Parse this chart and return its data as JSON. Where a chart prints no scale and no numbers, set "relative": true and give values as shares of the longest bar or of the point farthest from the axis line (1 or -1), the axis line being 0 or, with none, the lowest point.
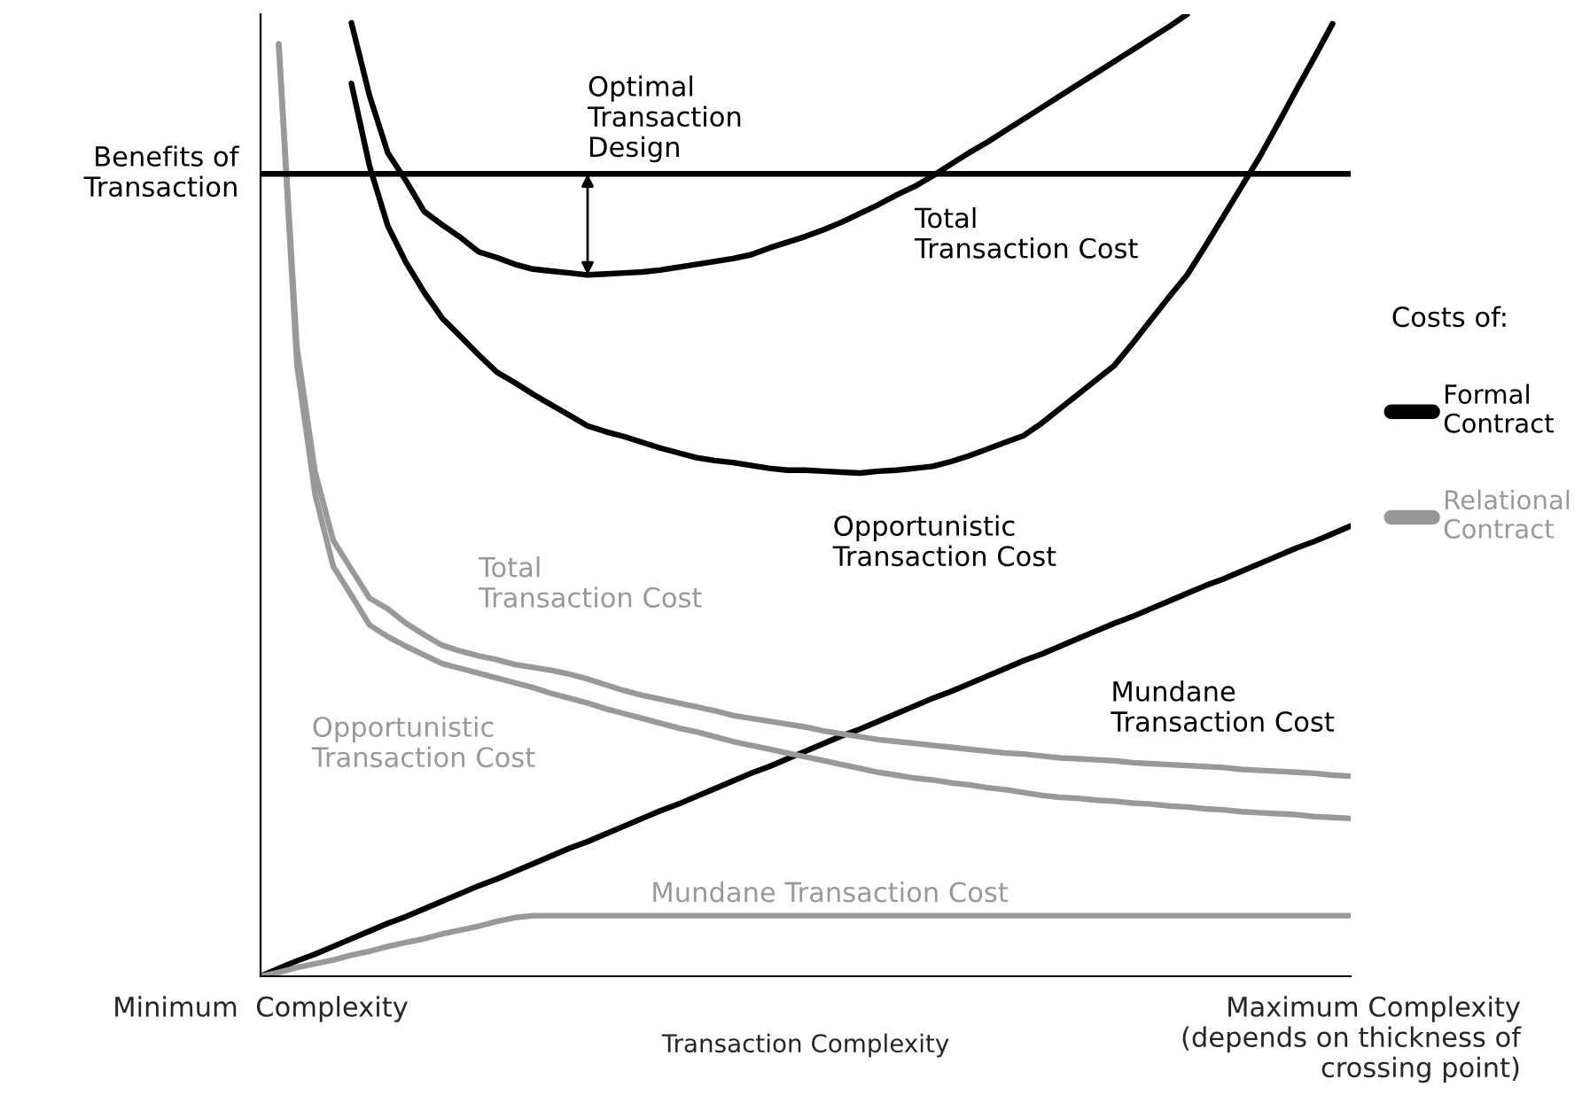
{
  "chart_data": {
    "type": "line",
    "relative": true,
    "xlabel": "Transaction Complexity",
    "legend_title": "Costs of:",
    "legend": "right",
    "grid": false,
    "marker": "none",
    "line_style": "solid",
    "tick_labels": "x",
    "categories": [
      "Minimum  Complexity",
      null,
      null,
      null,
      null,
      null,
      null,
      null,
      null,
      null,
      null,
      null,
      null,
      null,
      null,
      null,
      null,
      null,
      null,
      null,
      null,
      null,
      null,
      null,
      null,
      null,
      null,
      null,
      null,
      null,
      null,
      null,
      null,
      null,
      null,
      null,
      null,
      null,
      null,
      null,
      null,
      null,
      null,
      null,
      null,
      null,
      null,
      null,
      null,
      null,
      null,
      null,
      null,
      null,
      null,
      null,
      null,
      null,
      null,
      null,
      "Maximum Complexity\n(depends on thickness of\ncrossing point)"
    ],
    "series": [
      {
        "name": "Formal Contract",
        "color": "#000000",
        "values": [
          null,
          null,
          null,
          null,
          null,
          0.991,
          0.915,
          0.856,
          0.827,
          0.795,
          0.781,
          0.768,
          0.753,
          0.747,
          0.74,
          0.735,
          0.733,
          0.731,
          0.729,
          0.73,
          0.731,
          0.732,
          0.734,
          0.737,
          0.74,
          0.743,
          0.746,
          0.75,
          0.757,
          0.763,
          0.769,
          0.776,
          0.784,
          0.793,
          0.802,
          0.812,
          0.821,
          0.832,
          0.844,
          0.856,
          0.867,
          0.879,
          0.891,
          0.903,
          0.915,
          0.927,
          0.939,
          0.951,
          0.963,
          0.975,
          0.987,
          1.0,
          null,
          null,
          null,
          null,
          null,
          null,
          null,
          null,
          null
        ]
      },
      {
        "color": "#000000",
        "values": [
          null,
          null,
          null,
          null,
          null,
          0.928,
          0.842,
          0.78,
          0.742,
          0.711,
          0.684,
          0.665,
          0.646,
          0.628,
          0.617,
          0.605,
          0.594,
          0.583,
          0.572,
          0.566,
          0.561,
          0.555,
          0.549,
          0.544,
          0.539,
          0.536,
          0.534,
          0.531,
          0.528,
          0.526,
          0.526,
          0.525,
          0.524,
          0.523,
          0.525,
          0.526,
          0.528,
          0.53,
          0.535,
          0.541,
          0.548,
          0.555,
          0.562,
          0.575,
          0.59,
          0.605,
          0.62,
          0.635,
          0.658,
          0.682,
          0.706,
          0.729,
          0.759,
          0.79,
          0.821,
          0.852,
          0.886,
          0.921,
          0.955,
          0.99,
          null
        ]
      },
      {
        "color": "#000000",
        "values": [
          0,
          0.008,
          0.016,
          0.023,
          0.031,
          0.039,
          0.047,
          0.055,
          0.062,
          0.07,
          0.078,
          0.086,
          0.094,
          0.101,
          0.109,
          0.117,
          0.125,
          0.133,
          0.14,
          0.148,
          0.156,
          0.164,
          0.172,
          0.179,
          0.187,
          0.195,
          0.203,
          0.211,
          0.218,
          0.226,
          0.234,
          0.242,
          0.25,
          0.257,
          0.265,
          0.273,
          0.281,
          0.289,
          0.296,
          0.304,
          0.312,
          0.32,
          0.328,
          0.335,
          0.343,
          0.351,
          0.359,
          0.367,
          0.374,
          0.382,
          0.39,
          0.398,
          0.406,
          0.413,
          0.421,
          0.429,
          0.437,
          0.445,
          0.452,
          0.46,
          0.468
        ]
      },
      {
        "name": "Relational Contract",
        "color": "#999999",
        "values": [
          null,
          0.969,
          0.654,
          0.524,
          0.453,
          0.423,
          0.393,
          0.382,
          0.367,
          0.355,
          0.344,
          0.338,
          0.333,
          0.329,
          0.324,
          0.321,
          0.318,
          0.314,
          0.309,
          0.303,
          0.297,
          0.292,
          0.288,
          0.284,
          0.28,
          0.276,
          0.271,
          0.268,
          0.265,
          0.262,
          0.259,
          0.255,
          0.252,
          0.249,
          0.246,
          0.244,
          0.242,
          0.24,
          0.238,
          0.236,
          0.234,
          0.232,
          0.231,
          0.229,
          0.227,
          0.226,
          0.225,
          0.224,
          0.222,
          0.221,
          0.22,
          0.219,
          0.218,
          0.217,
          0.215,
          0.214,
          0.213,
          0.212,
          0.211,
          0.209,
          0.208
        ]
      },
      {
        "color": "#999999",
        "values": [
          null,
          0.969,
          0.636,
          0.501,
          0.426,
          0.396,
          0.365,
          0.353,
          0.343,
          0.334,
          0.325,
          0.32,
          0.315,
          0.31,
          0.305,
          0.3,
          0.294,
          0.289,
          0.284,
          0.278,
          0.273,
          0.268,
          0.263,
          0.258,
          0.254,
          0.249,
          0.244,
          0.24,
          0.236,
          0.232,
          0.228,
          0.224,
          0.22,
          0.216,
          0.212,
          0.209,
          0.206,
          0.204,
          0.201,
          0.199,
          0.196,
          0.194,
          0.191,
          0.188,
          0.186,
          0.185,
          0.183,
          0.182,
          0.18,
          0.179,
          0.177,
          0.176,
          0.174,
          0.173,
          0.171,
          0.17,
          0.169,
          0.168,
          0.166,
          0.165,
          0.164
        ]
      },
      {
        "color": "#999999",
        "values": [
          0,
          0.004,
          0.009,
          0.013,
          0.017,
          0.022,
          0.026,
          0.031,
          0.035,
          0.039,
          0.044,
          0.048,
          0.052,
          0.057,
          0.061,
          0.063,
          0.063,
          0.063,
          0.063,
          0.063,
          0.063,
          0.063,
          0.063,
          0.063,
          0.063,
          0.063,
          0.063,
          0.063,
          0.063,
          0.063,
          0.063,
          0.063,
          0.063,
          0.063,
          0.063,
          0.063,
          0.063,
          0.063,
          0.063,
          0.063,
          0.063,
          0.063,
          0.063,
          0.063,
          0.063,
          0.063,
          0.063,
          0.063,
          0.063,
          0.063,
          0.063,
          0.063,
          0.063,
          0.063,
          0.063,
          0.063,
          0.063,
          0.063,
          0.063,
          0.063,
          0.063
        ]
      }
    ],
    "ref_lines": [
      {
        "axis": "y",
        "value": 0.834,
        "label": "Benefits of\nTransaction",
        "color": "#000000"
      }
    ],
    "annotations": [
      {
        "text": "Optimal\nTransaction\nDesign",
        "y": 0.834
      },
      "Total\nTransaction Cost",
      "Opportunistic\nTransaction Cost",
      "Mundane\nTransaction Cost",
      "Total\nTransaction Cost",
      "Opportunistic\nTransaction Cost",
      "Mundane Transaction Cost"
    ]
  }
}
